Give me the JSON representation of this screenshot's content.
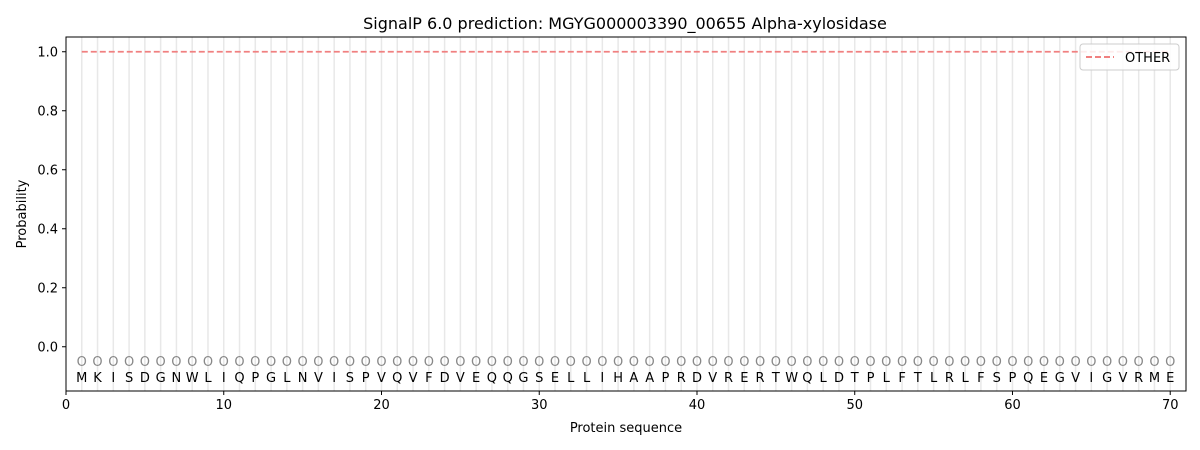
{
  "chart_data": {
    "type": "line",
    "title": "SignalP 6.0 prediction: MGYG000003390_00655 Alpha-xylosidase",
    "xlabel": "Protein sequence",
    "ylabel": "Probability",
    "xlim": [
      0,
      71
    ],
    "ylim": [
      -0.15,
      1.05
    ],
    "xticks": [
      0,
      10,
      20,
      30,
      40,
      50,
      60,
      70
    ],
    "yticks": [
      0.0,
      0.2,
      0.4,
      0.6,
      0.8,
      1.0
    ],
    "ytick_labels": [
      "0.0",
      "0.2",
      "0.4",
      "0.6",
      "0.8",
      "1.0"
    ],
    "legend_position": "top-right",
    "series": [
      {
        "name": "OTHER",
        "color": "#f08080",
        "style": "dashed",
        "x": [
          1,
          70
        ],
        "y": [
          1.0,
          1.0
        ]
      }
    ],
    "sequence": [
      "M",
      "K",
      "I",
      "S",
      "D",
      "G",
      "N",
      "W",
      "L",
      "I",
      "Q",
      "P",
      "G",
      "L",
      "N",
      "V",
      "I",
      "S",
      "P",
      "V",
      "Q",
      "V",
      "F",
      "D",
      "V",
      "E",
      "Q",
      "Q",
      "G",
      "S",
      "E",
      "L",
      "L",
      "I",
      "H",
      "A",
      "A",
      "P",
      "R",
      "D",
      "V",
      "R",
      "E",
      "R",
      "T",
      "W",
      "Q",
      "L",
      "D",
      "T",
      "P",
      "L",
      "F",
      "T",
      "L",
      "R",
      "L",
      "F",
      "S",
      "P",
      "Q",
      "E",
      "G",
      "V",
      "I",
      "G",
      "V",
      "R",
      "M",
      "E"
    ],
    "region_labels": [
      "O",
      "O",
      "O",
      "O",
      "O",
      "O",
      "O",
      "O",
      "O",
      "O",
      "O",
      "O",
      "O",
      "O",
      "O",
      "O",
      "O",
      "O",
      "O",
      "O",
      "O",
      "O",
      "O",
      "O",
      "O",
      "O",
      "O",
      "O",
      "O",
      "O",
      "O",
      "O",
      "O",
      "O",
      "O",
      "O",
      "O",
      "O",
      "O",
      "O",
      "O",
      "O",
      "O",
      "O",
      "O",
      "O",
      "O",
      "O",
      "O",
      "O",
      "O",
      "O",
      "O",
      "O",
      "O",
      "O",
      "O",
      "O",
      "O",
      "O",
      "O",
      "O",
      "O",
      "O",
      "O",
      "O",
      "O",
      "O",
      "O",
      "O"
    ]
  }
}
